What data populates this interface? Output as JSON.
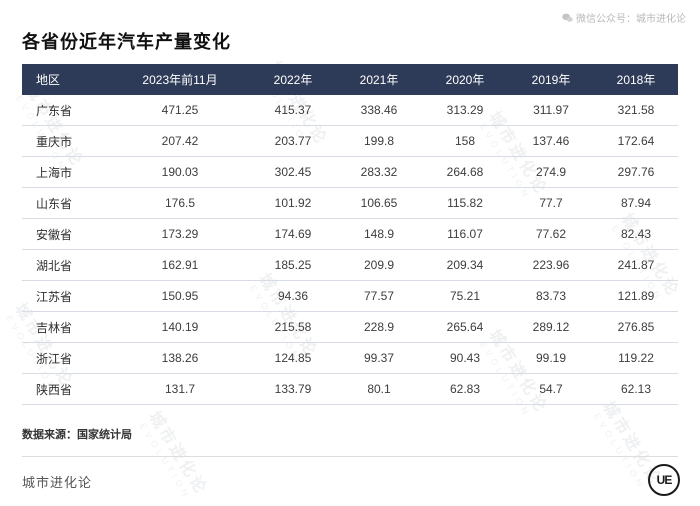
{
  "note": {
    "icon": "wechat-logo",
    "text": "微信公众号：城市进化论"
  },
  "chart_data": {
    "type": "table",
    "title": "各省份近年汽车产量变化",
    "columns": [
      "地区",
      "2023年前11月",
      "2022年",
      "2021年",
      "2020年",
      "2019年",
      "2018年"
    ],
    "rows": [
      [
        "广东省",
        471.25,
        415.37,
        338.46,
        313.29,
        311.97,
        321.58
      ],
      [
        "重庆市",
        207.42,
        203.77,
        199.8,
        158,
        137.46,
        172.64
      ],
      [
        "上海市",
        190.03,
        302.45,
        283.32,
        264.68,
        274.9,
        297.76
      ],
      [
        "山东省",
        176.5,
        101.92,
        106.65,
        115.82,
        77.7,
        87.94
      ],
      [
        "安徽省",
        173.29,
        174.69,
        148.9,
        116.07,
        77.62,
        82.43
      ],
      [
        "湖北省",
        162.91,
        185.25,
        209.9,
        209.34,
        223.96,
        241.87
      ],
      [
        "江苏省",
        150.95,
        94.36,
        77.57,
        75.21,
        83.73,
        121.89
      ],
      [
        "吉林省",
        140.19,
        215.58,
        228.9,
        265.64,
        289.12,
        276.85
      ],
      [
        "浙江省",
        138.26,
        124.85,
        99.37,
        90.43,
        99.19,
        119.22
      ],
      [
        "陕西省",
        131.7,
        133.79,
        80.1,
        62.83,
        54.7,
        62.13
      ]
    ],
    "source": "数据来源：国家统计局"
  },
  "footer": {
    "brand": "城市进化论",
    "logo_text": "UE"
  },
  "watermark": {
    "line1": "城市进化论",
    "line2": "EVOLUTION"
  },
  "colors": {
    "header_bg": "#2e3b58",
    "header_text": "#ffffff",
    "row_border": "#d6dbe4",
    "body_text": "#3d3d3d"
  }
}
